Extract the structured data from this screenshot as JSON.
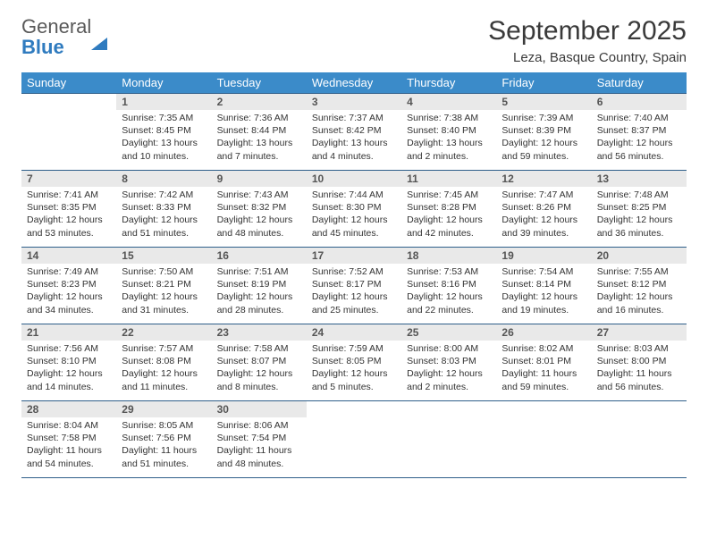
{
  "logo": {
    "line1": "General",
    "line2": "Blue"
  },
  "title": "September 2025",
  "location": "Leza, Basque Country, Spain",
  "colors": {
    "header_bg": "#3b8bc9",
    "header_text": "#ffffff",
    "daynum_bg": "#e9e9e9",
    "border": "#2f5f8a",
    "logo_blue": "#2f7bbf"
  },
  "weekdays": [
    "Sunday",
    "Monday",
    "Tuesday",
    "Wednesday",
    "Thursday",
    "Friday",
    "Saturday"
  ],
  "grid": [
    [
      {
        "empty": true
      },
      {
        "day": "1",
        "sunrise": "Sunrise: 7:35 AM",
        "sunset": "Sunset: 8:45 PM",
        "daylight": "Daylight: 13 hours and 10 minutes."
      },
      {
        "day": "2",
        "sunrise": "Sunrise: 7:36 AM",
        "sunset": "Sunset: 8:44 PM",
        "daylight": "Daylight: 13 hours and 7 minutes."
      },
      {
        "day": "3",
        "sunrise": "Sunrise: 7:37 AM",
        "sunset": "Sunset: 8:42 PM",
        "daylight": "Daylight: 13 hours and 4 minutes."
      },
      {
        "day": "4",
        "sunrise": "Sunrise: 7:38 AM",
        "sunset": "Sunset: 8:40 PM",
        "daylight": "Daylight: 13 hours and 2 minutes."
      },
      {
        "day": "5",
        "sunrise": "Sunrise: 7:39 AM",
        "sunset": "Sunset: 8:39 PM",
        "daylight": "Daylight: 12 hours and 59 minutes."
      },
      {
        "day": "6",
        "sunrise": "Sunrise: 7:40 AM",
        "sunset": "Sunset: 8:37 PM",
        "daylight": "Daylight: 12 hours and 56 minutes."
      }
    ],
    [
      {
        "day": "7",
        "sunrise": "Sunrise: 7:41 AM",
        "sunset": "Sunset: 8:35 PM",
        "daylight": "Daylight: 12 hours and 53 minutes."
      },
      {
        "day": "8",
        "sunrise": "Sunrise: 7:42 AM",
        "sunset": "Sunset: 8:33 PM",
        "daylight": "Daylight: 12 hours and 51 minutes."
      },
      {
        "day": "9",
        "sunrise": "Sunrise: 7:43 AM",
        "sunset": "Sunset: 8:32 PM",
        "daylight": "Daylight: 12 hours and 48 minutes."
      },
      {
        "day": "10",
        "sunrise": "Sunrise: 7:44 AM",
        "sunset": "Sunset: 8:30 PM",
        "daylight": "Daylight: 12 hours and 45 minutes."
      },
      {
        "day": "11",
        "sunrise": "Sunrise: 7:45 AM",
        "sunset": "Sunset: 8:28 PM",
        "daylight": "Daylight: 12 hours and 42 minutes."
      },
      {
        "day": "12",
        "sunrise": "Sunrise: 7:47 AM",
        "sunset": "Sunset: 8:26 PM",
        "daylight": "Daylight: 12 hours and 39 minutes."
      },
      {
        "day": "13",
        "sunrise": "Sunrise: 7:48 AM",
        "sunset": "Sunset: 8:25 PM",
        "daylight": "Daylight: 12 hours and 36 minutes."
      }
    ],
    [
      {
        "day": "14",
        "sunrise": "Sunrise: 7:49 AM",
        "sunset": "Sunset: 8:23 PM",
        "daylight": "Daylight: 12 hours and 34 minutes."
      },
      {
        "day": "15",
        "sunrise": "Sunrise: 7:50 AM",
        "sunset": "Sunset: 8:21 PM",
        "daylight": "Daylight: 12 hours and 31 minutes."
      },
      {
        "day": "16",
        "sunrise": "Sunrise: 7:51 AM",
        "sunset": "Sunset: 8:19 PM",
        "daylight": "Daylight: 12 hours and 28 minutes."
      },
      {
        "day": "17",
        "sunrise": "Sunrise: 7:52 AM",
        "sunset": "Sunset: 8:17 PM",
        "daylight": "Daylight: 12 hours and 25 minutes."
      },
      {
        "day": "18",
        "sunrise": "Sunrise: 7:53 AM",
        "sunset": "Sunset: 8:16 PM",
        "daylight": "Daylight: 12 hours and 22 minutes."
      },
      {
        "day": "19",
        "sunrise": "Sunrise: 7:54 AM",
        "sunset": "Sunset: 8:14 PM",
        "daylight": "Daylight: 12 hours and 19 minutes."
      },
      {
        "day": "20",
        "sunrise": "Sunrise: 7:55 AM",
        "sunset": "Sunset: 8:12 PM",
        "daylight": "Daylight: 12 hours and 16 minutes."
      }
    ],
    [
      {
        "day": "21",
        "sunrise": "Sunrise: 7:56 AM",
        "sunset": "Sunset: 8:10 PM",
        "daylight": "Daylight: 12 hours and 14 minutes."
      },
      {
        "day": "22",
        "sunrise": "Sunrise: 7:57 AM",
        "sunset": "Sunset: 8:08 PM",
        "daylight": "Daylight: 12 hours and 11 minutes."
      },
      {
        "day": "23",
        "sunrise": "Sunrise: 7:58 AM",
        "sunset": "Sunset: 8:07 PM",
        "daylight": "Daylight: 12 hours and 8 minutes."
      },
      {
        "day": "24",
        "sunrise": "Sunrise: 7:59 AM",
        "sunset": "Sunset: 8:05 PM",
        "daylight": "Daylight: 12 hours and 5 minutes."
      },
      {
        "day": "25",
        "sunrise": "Sunrise: 8:00 AM",
        "sunset": "Sunset: 8:03 PM",
        "daylight": "Daylight: 12 hours and 2 minutes."
      },
      {
        "day": "26",
        "sunrise": "Sunrise: 8:02 AM",
        "sunset": "Sunset: 8:01 PM",
        "daylight": "Daylight: 11 hours and 59 minutes."
      },
      {
        "day": "27",
        "sunrise": "Sunrise: 8:03 AM",
        "sunset": "Sunset: 8:00 PM",
        "daylight": "Daylight: 11 hours and 56 minutes."
      }
    ],
    [
      {
        "day": "28",
        "sunrise": "Sunrise: 8:04 AM",
        "sunset": "Sunset: 7:58 PM",
        "daylight": "Daylight: 11 hours and 54 minutes."
      },
      {
        "day": "29",
        "sunrise": "Sunrise: 8:05 AM",
        "sunset": "Sunset: 7:56 PM",
        "daylight": "Daylight: 11 hours and 51 minutes."
      },
      {
        "day": "30",
        "sunrise": "Sunrise: 8:06 AM",
        "sunset": "Sunset: 7:54 PM",
        "daylight": "Daylight: 11 hours and 48 minutes."
      },
      {
        "empty": true
      },
      {
        "empty": true
      },
      {
        "empty": true
      },
      {
        "empty": true
      }
    ]
  ]
}
